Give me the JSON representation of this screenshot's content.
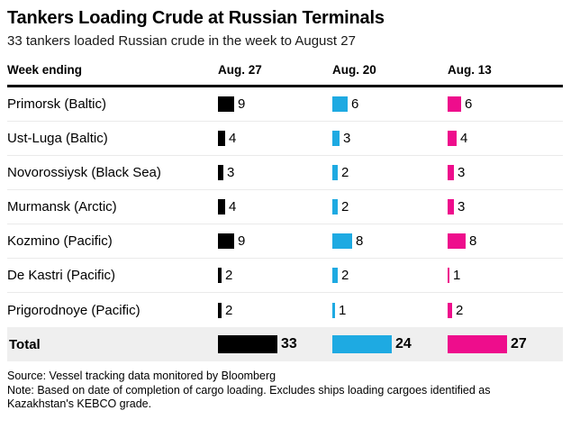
{
  "header": {
    "title": "Tankers Loading Crude at Russian Terminals",
    "subtitle": "33 tankers loaded Russian crude in the week to August 27"
  },
  "table": {
    "label_column_header": "Week ending",
    "total_label": "Total"
  },
  "chart_data": {
    "type": "bar",
    "title": "Tankers Loading Crude at Russian Terminals",
    "subtitle": "33 tankers loaded Russian crude in the week to August 27",
    "unit": "tankers",
    "legend_position": "column-headers",
    "grid": false,
    "categories": [
      "Primorsk (Baltic)",
      "Ust-Luga (Baltic)",
      "Novorossiysk (Black Sea)",
      "Murmansk (Arctic)",
      "Kozmino (Pacific)",
      "De Kastri (Pacific)",
      "Prigorodnoye (Pacific)"
    ],
    "series": [
      {
        "name": "Aug. 27",
        "color": "#000000",
        "values": [
          9,
          4,
          3,
          4,
          9,
          2,
          2
        ],
        "total": 33
      },
      {
        "name": "Aug. 20",
        "color": "#1eaae2",
        "values": [
          6,
          3,
          2,
          2,
          8,
          2,
          1
        ],
        "total": 24
      },
      {
        "name": "Aug. 13",
        "color": "#ee0d8c",
        "values": [
          6,
          4,
          3,
          3,
          8,
          1,
          2
        ],
        "total": 27
      }
    ]
  },
  "footer": {
    "source": "Source: Vessel tracking data monitored by Bloomberg",
    "note": "Note: Based on date of completion of cargo loading. Excludes ships loading cargoes identified as Kazakhstan's KEBCO grade."
  }
}
